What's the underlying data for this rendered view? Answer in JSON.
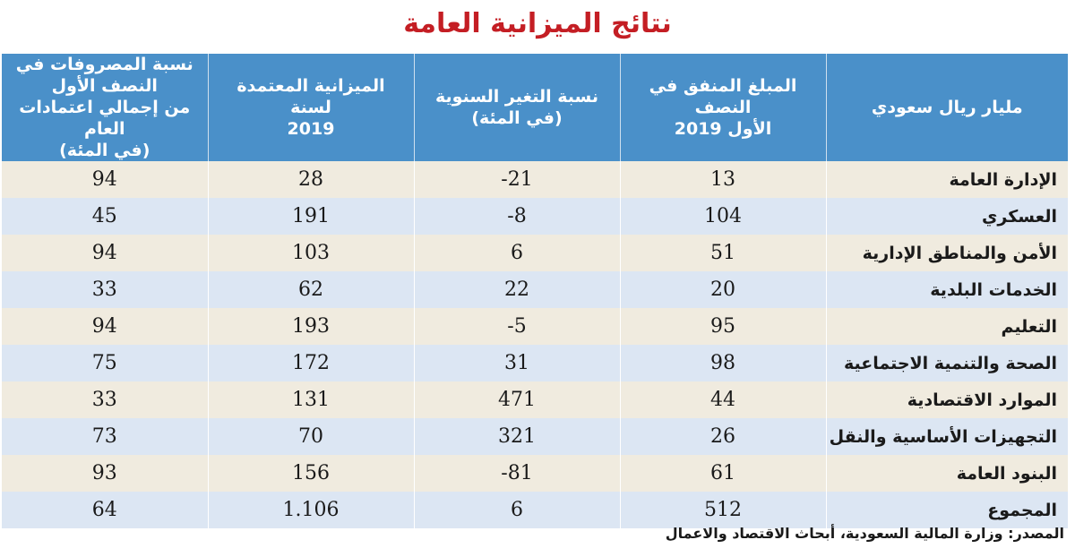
{
  "title": "نتائج الميزانية العامة",
  "headers": [
    "مليار ريال سعودي",
    "المبلغ المنفق في النصف\nالأول 2019",
    "نسبة التغير السنوية\n(في المئة)",
    "الميزانية المعتمدة لسنة\n2019",
    "نسبة المصروفات في النصف الأول\nمن إجمالي اعتمادات العام\n(في المئة)"
  ],
  "rows": [
    {
      "label": "الإدارة العامة",
      "spent": "13",
      "change": "21-",
      "budget": "28",
      "ratio": "94"
    },
    {
      "label": "العسكري",
      "spent": "104",
      "change": "8-",
      "budget": "191",
      "ratio": "45"
    },
    {
      "label": "الأمن والمناطق الإدارية",
      "spent": "51",
      "change": "6",
      "budget": "103",
      "ratio": "94"
    },
    {
      "label": "الخدمات البلدية",
      "spent": "20",
      "change": "22",
      "budget": "62",
      "ratio": "33"
    },
    {
      "label": "التعليم",
      "spent": "95",
      "change": "5-",
      "budget": "193",
      "ratio": "94"
    },
    {
      "label": "الصحة والتنمية الاجتماعية",
      "spent": "98",
      "change": "31",
      "budget": "172",
      "ratio": "75"
    },
    {
      "label": "الموارد الاقتصادية",
      "spent": "44",
      "change": "471",
      "budget": "131",
      "ratio": "33"
    },
    {
      "label": "التجهيزات الأساسية والنقل",
      "spent": "26",
      "change": "321",
      "budget": "70",
      "ratio": "73"
    },
    {
      "label": "البنود العامة",
      "spent": "61",
      "change": "81-",
      "budget": "156",
      "ratio": "93"
    },
    {
      "label": "المجموع",
      "spent": "512",
      "change": "6",
      "budget": "1.106",
      "ratio": "64"
    }
  ],
  "source": "المصدر: وزارة المالية السعودية، أبحاث الاقتصاد والاعمال",
  "colors": {
    "title": "#c41e24",
    "header_bg": "#4a90c9",
    "row_beige": "#f0ebdf",
    "row_blue": "#dce6f3"
  }
}
